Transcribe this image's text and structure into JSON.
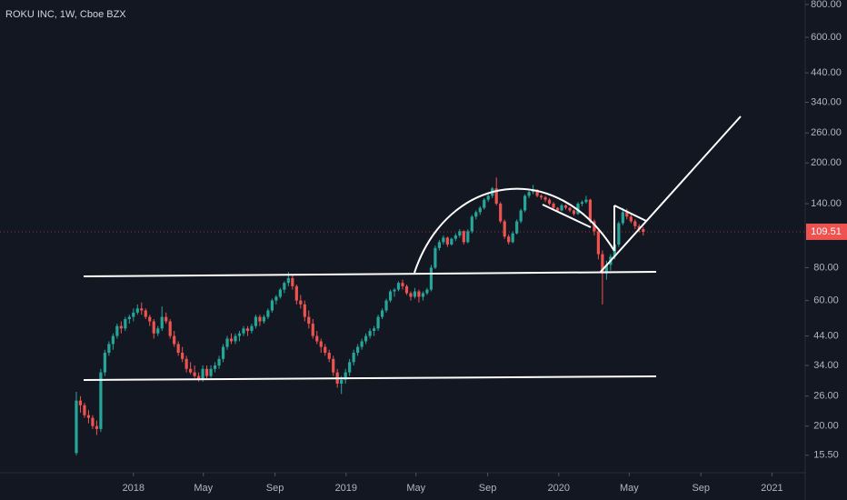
{
  "chart_data": {
    "type": "candlestick",
    "title": "ROKU INC, 1W, Cboe BZX",
    "yscale": "log",
    "up_color": "#26a69a",
    "down_color": "#ef5350",
    "grid": false,
    "xlim": [
      "2017-05-17",
      "2021-02-27"
    ],
    "ylim": [
      13.3,
      832
    ],
    "xticks": [
      {
        "value": "2018-01-01",
        "label": "2018"
      },
      {
        "value": "2018-05-01",
        "label": "May"
      },
      {
        "value": "2018-09-01",
        "label": "Sep"
      },
      {
        "value": "2019-01-01",
        "label": "2019"
      },
      {
        "value": "2019-05-01",
        "label": "May"
      },
      {
        "value": "2019-09-01",
        "label": "Sep"
      },
      {
        "value": "2020-01-01",
        "label": "2020"
      },
      {
        "value": "2020-05-01",
        "label": "May"
      },
      {
        "value": "2020-09-01",
        "label": "Sep"
      },
      {
        "value": "2021-01-01",
        "label": "2021"
      }
    ],
    "yticks": [
      {
        "value": 15.5,
        "label": "15.50"
      },
      {
        "value": 20,
        "label": "20.00"
      },
      {
        "value": 26,
        "label": "26.00"
      },
      {
        "value": 34,
        "label": "34.00"
      },
      {
        "value": 44,
        "label": "44.00"
      },
      {
        "value": 60,
        "label": "60.00"
      },
      {
        "value": 80,
        "label": "80.00"
      },
      {
        "value": 140,
        "label": "140.00"
      },
      {
        "value": 200,
        "label": "200.00"
      },
      {
        "value": 260,
        "label": "260.00"
      },
      {
        "value": 340,
        "label": "340.00"
      },
      {
        "value": 440,
        "label": "440.00"
      },
      {
        "value": 600,
        "label": "600.00"
      },
      {
        "value": 800,
        "label": "800.00"
      }
    ],
    "last_price": 109.51,
    "x": [
      "2017-09-25",
      "2017-10-02",
      "2017-10-09",
      "2017-10-16",
      "2017-10-23",
      "2017-10-30",
      "2017-11-06",
      "2017-11-13",
      "2017-11-20",
      "2017-11-27",
      "2017-12-04",
      "2017-12-11",
      "2017-12-18",
      "2017-12-25",
      "2018-01-01",
      "2018-01-08",
      "2018-01-15",
      "2018-01-22",
      "2018-01-29",
      "2018-02-05",
      "2018-02-12",
      "2018-02-19",
      "2018-02-26",
      "2018-03-05",
      "2018-03-12",
      "2018-03-19",
      "2018-03-26",
      "2018-04-02",
      "2018-04-09",
      "2018-04-16",
      "2018-04-23",
      "2018-04-30",
      "2018-05-07",
      "2018-05-14",
      "2018-05-21",
      "2018-05-28",
      "2018-06-04",
      "2018-06-11",
      "2018-06-18",
      "2018-06-25",
      "2018-07-02",
      "2018-07-09",
      "2018-07-16",
      "2018-07-23",
      "2018-07-30",
      "2018-08-06",
      "2018-08-13",
      "2018-08-20",
      "2018-08-27",
      "2018-09-03",
      "2018-09-10",
      "2018-09-17",
      "2018-09-24",
      "2018-10-01",
      "2018-10-08",
      "2018-10-15",
      "2018-10-22",
      "2018-10-29",
      "2018-11-05",
      "2018-11-12",
      "2018-11-19",
      "2018-11-26",
      "2018-12-03",
      "2018-12-10",
      "2018-12-17",
      "2018-12-24",
      "2018-12-31",
      "2019-01-07",
      "2019-01-14",
      "2019-01-21",
      "2019-01-28",
      "2019-02-04",
      "2019-02-11",
      "2019-02-18",
      "2019-02-25",
      "2019-03-04",
      "2019-03-11",
      "2019-03-18",
      "2019-03-25",
      "2019-04-01",
      "2019-04-08",
      "2019-04-15",
      "2019-04-22",
      "2019-04-29",
      "2019-05-06",
      "2019-05-13",
      "2019-05-20",
      "2019-05-27",
      "2019-06-03",
      "2019-06-10",
      "2019-06-17",
      "2019-06-24",
      "2019-07-01",
      "2019-07-08",
      "2019-07-15",
      "2019-07-22",
      "2019-07-29",
      "2019-08-05",
      "2019-08-12",
      "2019-08-19",
      "2019-08-26",
      "2019-09-02",
      "2019-09-09",
      "2019-09-16",
      "2019-09-23",
      "2019-09-30",
      "2019-10-07",
      "2019-10-14",
      "2019-10-21",
      "2019-10-28",
      "2019-11-04",
      "2019-11-11",
      "2019-11-18",
      "2019-11-25",
      "2019-12-02",
      "2019-12-09",
      "2019-12-16",
      "2019-12-23",
      "2019-12-30",
      "2020-01-06",
      "2020-01-13",
      "2020-01-20",
      "2020-01-27",
      "2020-02-03",
      "2020-02-10",
      "2020-02-17",
      "2020-02-24",
      "2020-03-02",
      "2020-03-09",
      "2020-03-16",
      "2020-03-23",
      "2020-03-30",
      "2020-04-06",
      "2020-04-13",
      "2020-04-20",
      "2020-04-27",
      "2020-05-04",
      "2020-05-11",
      "2020-05-18",
      "2020-05-25"
    ],
    "ohlc": [
      [
        15.8,
        27,
        15.5,
        25
      ],
      [
        25,
        26,
        22.5,
        24
      ],
      [
        24,
        24.5,
        21.5,
        22
      ],
      [
        22,
        23,
        20.5,
        21.5
      ],
      [
        21.5,
        22,
        19.5,
        20
      ],
      [
        20,
        21,
        18.5,
        19.5
      ],
      [
        19.5,
        33,
        19,
        32
      ],
      [
        32,
        39,
        31,
        38
      ],
      [
        38,
        42,
        37,
        41
      ],
      [
        41,
        45,
        39,
        44
      ],
      [
        44,
        49,
        43,
        48
      ],
      [
        48,
        50,
        45,
        47
      ],
      [
        47,
        52,
        46,
        51
      ],
      [
        51,
        53,
        49,
        52
      ],
      [
        52,
        56,
        50,
        54
      ],
      [
        54,
        58,
        53,
        56
      ],
      [
        56,
        59,
        53,
        55
      ],
      [
        55,
        56,
        51,
        52
      ],
      [
        52,
        53,
        48,
        50
      ],
      [
        50,
        51,
        43,
        45
      ],
      [
        45,
        48,
        44,
        47
      ],
      [
        47,
        57,
        46,
        52
      ],
      [
        52,
        54,
        49,
        50
      ],
      [
        50,
        51,
        43,
        44
      ],
      [
        44,
        46,
        40,
        41
      ],
      [
        41,
        42,
        37,
        38
      ],
      [
        38,
        40,
        35,
        36
      ],
      [
        36,
        37,
        32,
        33
      ],
      [
        33,
        35,
        31.5,
        32
      ],
      [
        32,
        34,
        30.5,
        31
      ],
      [
        31,
        32,
        29.5,
        30
      ],
      [
        30,
        34,
        29.5,
        33
      ],
      [
        33,
        34,
        30,
        31
      ],
      [
        31,
        34,
        30.5,
        33
      ],
      [
        33,
        35,
        32,
        34
      ],
      [
        34,
        37,
        33,
        36
      ],
      [
        36,
        41,
        35,
        40
      ],
      [
        40,
        44,
        39,
        43
      ],
      [
        43,
        45,
        41,
        42
      ],
      [
        42,
        45,
        41,
        44
      ],
      [
        44,
        46,
        42,
        45
      ],
      [
        45,
        48,
        44,
        47
      ],
      [
        47,
        48,
        44,
        46
      ],
      [
        46,
        49,
        45,
        48
      ],
      [
        48,
        53,
        47,
        52
      ],
      [
        52,
        53,
        48,
        50
      ],
      [
        50,
        53,
        49,
        52
      ],
      [
        52,
        56,
        51,
        55
      ],
      [
        55,
        61,
        54,
        60
      ],
      [
        60,
        63,
        58,
        62
      ],
      [
        62,
        67,
        61,
        66
      ],
      [
        66,
        71,
        64,
        70
      ],
      [
        70,
        77,
        68,
        73
      ],
      [
        73,
        75,
        66,
        68
      ],
      [
        68,
        69,
        58,
        60
      ],
      [
        60,
        63,
        56,
        58
      ],
      [
        58,
        60,
        50,
        52
      ],
      [
        52,
        55,
        47,
        49
      ],
      [
        49,
        51,
        43,
        44
      ],
      [
        44,
        46,
        41,
        42
      ],
      [
        42,
        43,
        38,
        40
      ],
      [
        40,
        41,
        37,
        38
      ],
      [
        38,
        39,
        35,
        36
      ],
      [
        36,
        37,
        31,
        32
      ],
      [
        32,
        33,
        28,
        29
      ],
      [
        29,
        31,
        26.5,
        30
      ],
      [
        30,
        33,
        29,
        32
      ],
      [
        32,
        36,
        31,
        35
      ],
      [
        35,
        39,
        34,
        38
      ],
      [
        38,
        41,
        37,
        40
      ],
      [
        40,
        43,
        39,
        42
      ],
      [
        42,
        45,
        41,
        44
      ],
      [
        44,
        47,
        43,
        46
      ],
      [
        46,
        48,
        44,
        47
      ],
      [
        47,
        53,
        46,
        52
      ],
      [
        52,
        56,
        51,
        55
      ],
      [
        55,
        61,
        54,
        60
      ],
      [
        60,
        66,
        59,
        65
      ],
      [
        65,
        67,
        62,
        66
      ],
      [
        66,
        71,
        65,
        70
      ],
      [
        70,
        72,
        66,
        68
      ],
      [
        68,
        69,
        63,
        64
      ],
      [
        64,
        65,
        60,
        62
      ],
      [
        62,
        67,
        61,
        65
      ],
      [
        65,
        66,
        59,
        62
      ],
      [
        62,
        65,
        60,
        64
      ],
      [
        64,
        67,
        63,
        66
      ],
      [
        66,
        82,
        65,
        80
      ],
      [
        80,
        97,
        79,
        95
      ],
      [
        95,
        102,
        93,
        100
      ],
      [
        100,
        106,
        98,
        104
      ],
      [
        104,
        105,
        96,
        98
      ],
      [
        98,
        104,
        97,
        103
      ],
      [
        103,
        108,
        101,
        106
      ],
      [
        106,
        112,
        104,
        110
      ],
      [
        110,
        111,
        98,
        100
      ],
      [
        100,
        112,
        99,
        110
      ],
      [
        110,
        127,
        108,
        125
      ],
      [
        125,
        132,
        122,
        130
      ],
      [
        130,
        137,
        127,
        135
      ],
      [
        135,
        147,
        133,
        145
      ],
      [
        145,
        152,
        142,
        150
      ],
      [
        150,
        162,
        147,
        160
      ],
      [
        160,
        176,
        138,
        140
      ],
      [
        140,
        142,
        118,
        120
      ],
      [
        120,
        122,
        103,
        105
      ],
      [
        105,
        107,
        98,
        100
      ],
      [
        100,
        110,
        99,
        108
      ],
      [
        108,
        122,
        107,
        120
      ],
      [
        120,
        134,
        118,
        132
      ],
      [
        132,
        152,
        130,
        150
      ],
      [
        150,
        157,
        147,
        155
      ],
      [
        155,
        165,
        152,
        158
      ],
      [
        158,
        159,
        148,
        150
      ],
      [
        150,
        152,
        145,
        148
      ],
      [
        148,
        150,
        142,
        145
      ],
      [
        145,
        147,
        138,
        140
      ],
      [
        140,
        142,
        133,
        135
      ],
      [
        135,
        136,
        130,
        132
      ],
      [
        132,
        140,
        131,
        138
      ],
      [
        138,
        139,
        133,
        135
      ],
      [
        135,
        136,
        130,
        132
      ],
      [
        132,
        133,
        126,
        128
      ],
      [
        128,
        142,
        127,
        140
      ],
      [
        140,
        144,
        137,
        142
      ],
      [
        142,
        150,
        140,
        145
      ],
      [
        145,
        146,
        118,
        120
      ],
      [
        120,
        122,
        106,
        110
      ],
      [
        110,
        112,
        86,
        90
      ],
      [
        90,
        93,
        58,
        76
      ],
      [
        76,
        85,
        72,
        82
      ],
      [
        82,
        90,
        78,
        88
      ],
      [
        88,
        100,
        86,
        98
      ],
      [
        98,
        120,
        96,
        118
      ],
      [
        118,
        135,
        116,
        130
      ],
      [
        130,
        134,
        122,
        125
      ],
      [
        125,
        128,
        118,
        120
      ],
      [
        120,
        122,
        112,
        115
      ],
      [
        115,
        117,
        109,
        112
      ],
      [
        112,
        114,
        106,
        109.51
      ]
    ]
  }
}
